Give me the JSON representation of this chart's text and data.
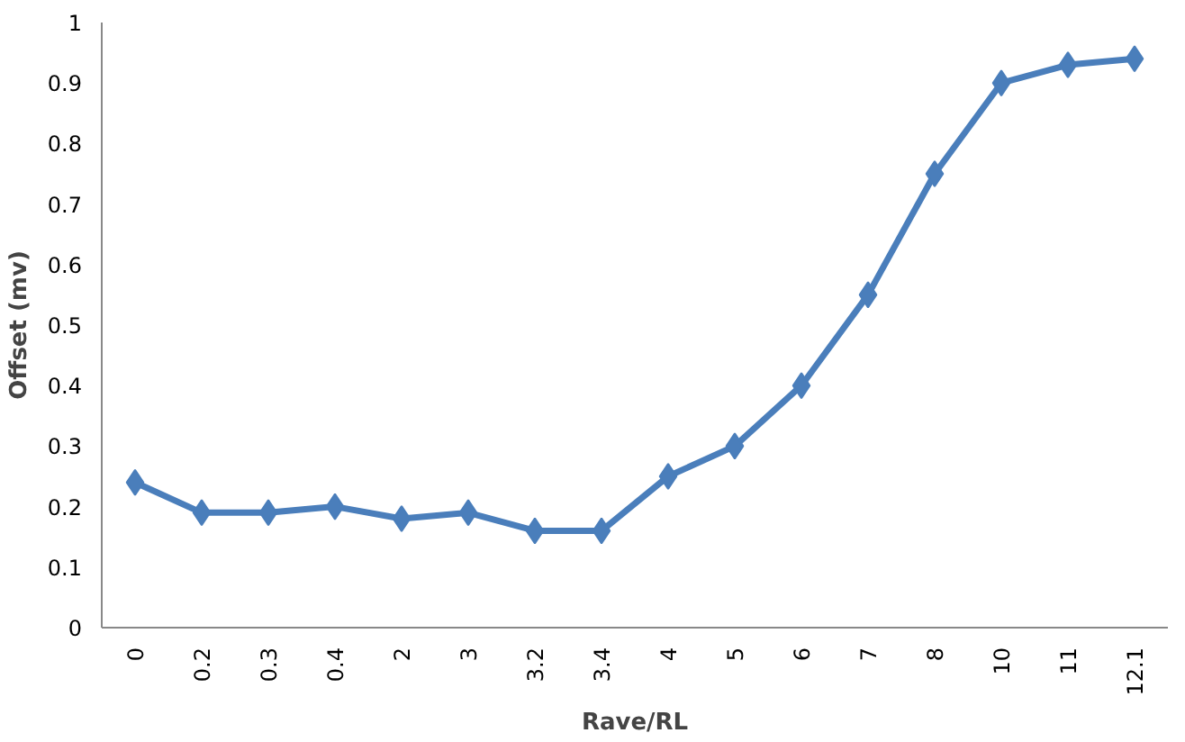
{
  "chart_data": {
    "type": "line",
    "xlabel": "Rave/RL",
    "ylabel": "Offset (mv)",
    "categories": [
      "0",
      "0.2",
      "0.3",
      "0.4",
      "2",
      "3",
      "3.2",
      "3.4",
      "4",
      "5",
      "6",
      "7",
      "8",
      "10",
      "11",
      "12.1"
    ],
    "series": [
      {
        "color": "#4a7ebb",
        "values": [
          0.24,
          0.19,
          0.19,
          0.2,
          0.18,
          0.19,
          0.16,
          0.16,
          0.25,
          0.3,
          0.4,
          0.55,
          0.75,
          0.9,
          0.93,
          0.94
        ]
      }
    ],
    "ylim": [
      0,
      1
    ],
    "yticks": [
      0,
      0.1,
      0.2,
      0.3,
      0.4,
      0.5,
      0.6,
      0.7,
      0.8,
      0.9,
      1
    ],
    "marker": "diamond",
    "line_style": "solid"
  }
}
